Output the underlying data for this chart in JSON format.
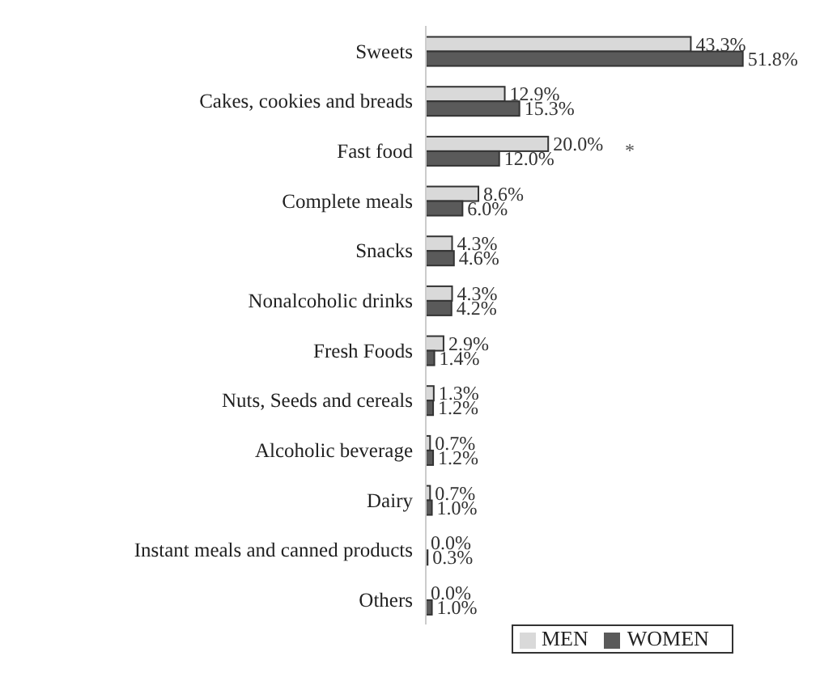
{
  "chart_data": {
    "type": "bar",
    "orientation": "horizontal",
    "relative": false,
    "categories": [
      "Sweets",
      "Cakes, cookies and breads",
      "Fast food",
      "Complete meals",
      "Snacks",
      "Nonalcoholic drinks",
      "Fresh Foods",
      "Nuts, Seeds and cereals",
      "Alcoholic beverage",
      "Dairy",
      "Instant meals and canned products",
      "Others"
    ],
    "series": [
      {
        "name": "MEN",
        "color": "#d9d9d9",
        "values": [
          43.3,
          12.9,
          20.0,
          8.6,
          4.3,
          4.3,
          2.9,
          1.3,
          0.7,
          0.7,
          0.0,
          0.0
        ],
        "value_labels": [
          "43.3%",
          "12.9%",
          "20.0%",
          "8.6%",
          "4.3%",
          "4.3%",
          "2.9%",
          "1.3%",
          "0.7%",
          "0.7%",
          "0.0%",
          "0.0%"
        ]
      },
      {
        "name": "WOMEN",
        "color": "#5a5a5a",
        "values": [
          51.8,
          15.3,
          12.0,
          6.0,
          4.6,
          4.2,
          1.4,
          1.2,
          1.2,
          1.0,
          0.3,
          1.0
        ],
        "value_labels": [
          "51.8%",
          "15.3%",
          "12.0%",
          "6.0%",
          "4.6%",
          "4.2%",
          "1.4%",
          "1.2%",
          "1.2%",
          "1.0%",
          "0.3%",
          "1.0%"
        ]
      }
    ],
    "annotations": [
      "*"
    ],
    "legend": "bottom"
  }
}
